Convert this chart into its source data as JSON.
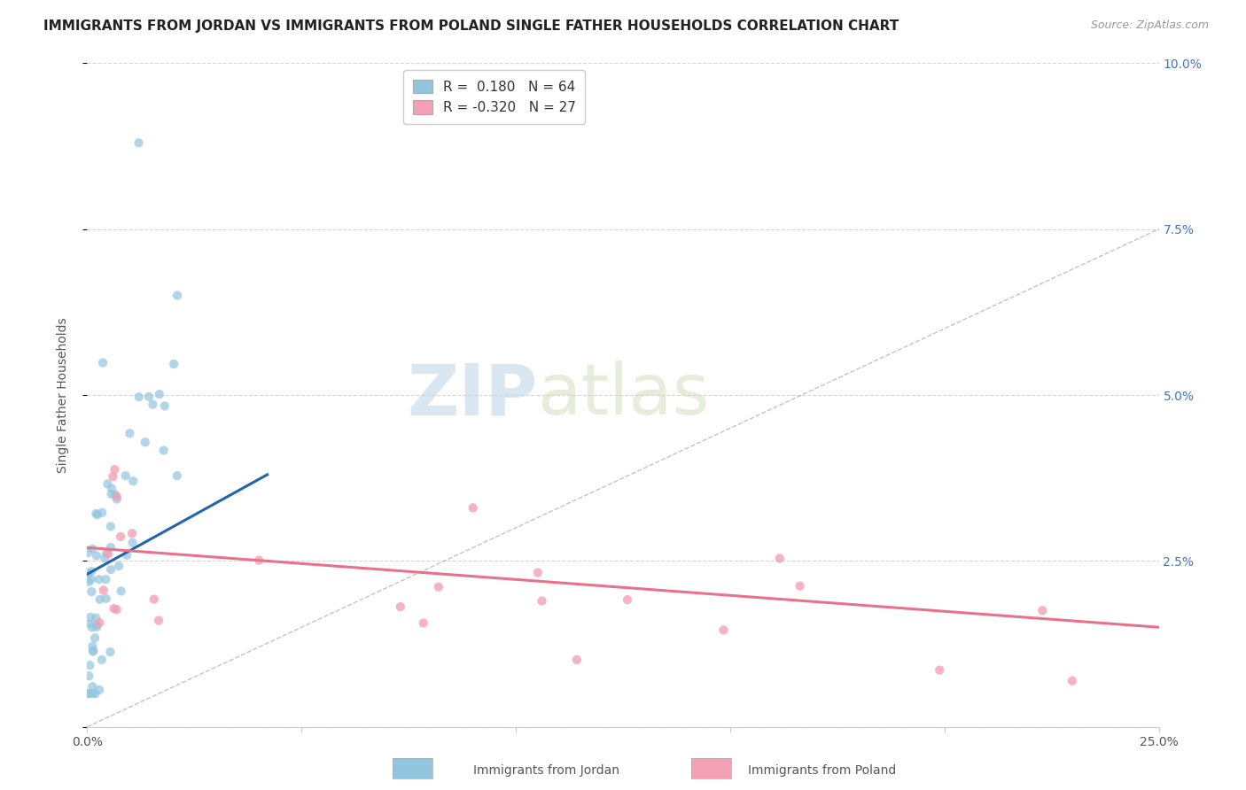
{
  "title": "IMMIGRANTS FROM JORDAN VS IMMIGRANTS FROM POLAND SINGLE FATHER HOUSEHOLDS CORRELATION CHART",
  "source": "Source: ZipAtlas.com",
  "ylabel": "Single Father Households",
  "x_min": 0.0,
  "x_max": 0.25,
  "y_min": 0.0,
  "y_max": 0.1,
  "jordan_color": "#92c5de",
  "poland_color": "#f4a0b5",
  "jordan_line_color": "#2166ac",
  "poland_line_color": "#e8728a",
  "jordan_R": 0.18,
  "jordan_N": 64,
  "poland_R": -0.32,
  "poland_N": 27,
  "watermark_zip": "ZIP",
  "watermark_atlas": "atlas",
  "background_color": "#ffffff",
  "grid_color": "#cccccc",
  "title_fontsize": 11,
  "axis_label_fontsize": 10,
  "tick_fontsize": 10,
  "legend_fontsize": 11,
  "right_tick_color": "#4472c4"
}
